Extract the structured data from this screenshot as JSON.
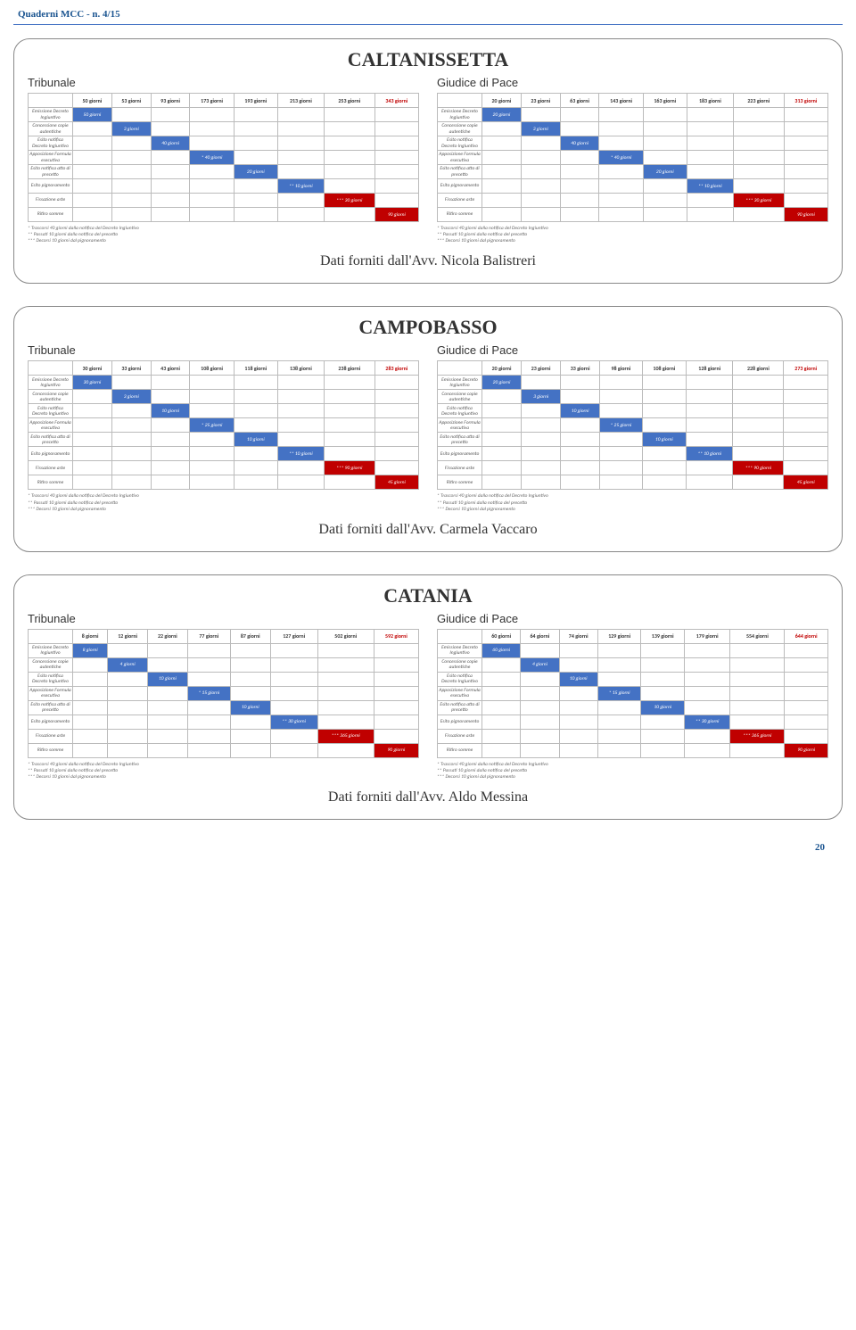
{
  "header": {
    "left": "Quaderni MCC - n. 4/15",
    "right": ""
  },
  "page_number": "20",
  "row_labels": [
    "Emissione Decreto Ingiuntivo",
    "Concessione copie autentiche",
    "Esito notifica Decreto Ingiuntivo",
    "Apposizione Formula esecutiva",
    "Esito notifica atto di precetto",
    "Esito pignoramento",
    "Fissazione aste",
    "Ritiro somme"
  ],
  "footnotes": [
    "* Trascorsi 40 giorni dalla notifica del Decreto Ingiuntivo",
    "** Passati 10 giorni dalla notifica del precetto",
    "*** Decorsi 10 giorni dal pignoramento"
  ],
  "cards": [
    {
      "city": "CALTANISSETTA",
      "provider": "Dati forniti dall'Avv. Nicola Balistreri",
      "left": {
        "title": "Tribunale",
        "headers": [
          "50 giorni",
          "53 giorni",
          "93 giorni",
          "173 giorni",
          "193 giorni",
          "213 giorni",
          "253 giorni"
        ],
        "total": "343 giorni",
        "bars": [
          {
            "col": 0,
            "span": 1,
            "color": "blue",
            "text": "50 giorni"
          },
          {
            "col": 1,
            "span": 1,
            "color": "blue",
            "text": "3 giorni"
          },
          {
            "col": 2,
            "span": 1,
            "color": "blue",
            "text": "40 giorni"
          },
          {
            "col": 3,
            "span": 1,
            "color": "blue",
            "text": "* 40 giorni"
          },
          {
            "col": 4,
            "span": 1,
            "color": "blue",
            "text": "20 giorni"
          },
          {
            "col": 5,
            "span": 1,
            "color": "blue",
            "text": "** 10 giorni"
          },
          {
            "col": 6,
            "span": 1,
            "color": "red",
            "text": "*** 30 giorni"
          },
          {
            "col": 7,
            "span": 1,
            "color": "red",
            "text": "90 giorni"
          }
        ]
      },
      "right": {
        "title": "Giudice di Pace",
        "headers": [
          "20 giorni",
          "23 giorni",
          "63 giorni",
          "143 giorni",
          "163 giorni",
          "183 giorni",
          "223 giorni"
        ],
        "total": "313 giorni",
        "bars": [
          {
            "col": 0,
            "span": 1,
            "color": "blue",
            "text": "20 giorni"
          },
          {
            "col": 1,
            "span": 1,
            "color": "blue",
            "text": "3 giorni"
          },
          {
            "col": 2,
            "span": 1,
            "color": "blue",
            "text": "40 giorni"
          },
          {
            "col": 3,
            "span": 1,
            "color": "blue",
            "text": "* 40 giorni"
          },
          {
            "col": 4,
            "span": 1,
            "color": "blue",
            "text": "20 giorni"
          },
          {
            "col": 5,
            "span": 1,
            "color": "blue",
            "text": "** 10 giorni"
          },
          {
            "col": 6,
            "span": 1,
            "color": "red",
            "text": "*** 30 giorni"
          },
          {
            "col": 7,
            "span": 1,
            "color": "red",
            "text": "90 giorni"
          }
        ]
      }
    },
    {
      "city": "CAMPOBASSO",
      "provider": "Dati forniti dall'Avv. Carmela Vaccaro",
      "left": {
        "title": "Tribunale",
        "headers": [
          "30 giorni",
          "33 giorni",
          "43 giorni",
          "108 giorni",
          "118 giorni",
          "138 giorni",
          "238 giorni"
        ],
        "total": "283 giorni",
        "bars": [
          {
            "col": 0,
            "span": 1,
            "color": "blue",
            "text": "30 giorni"
          },
          {
            "col": 1,
            "span": 1,
            "color": "blue",
            "text": "3 giorni"
          },
          {
            "col": 2,
            "span": 1,
            "color": "blue",
            "text": "10 giorni"
          },
          {
            "col": 3,
            "span": 1,
            "color": "blue",
            "text": "* 25 giorni"
          },
          {
            "col": 4,
            "span": 1,
            "color": "blue",
            "text": "10 giorni"
          },
          {
            "col": 5,
            "span": 1,
            "color": "blue",
            "text": "** 10 giorni"
          },
          {
            "col": 6,
            "span": 1,
            "color": "red",
            "text": "*** 90 giorni"
          },
          {
            "col": 7,
            "span": 1,
            "color": "red",
            "text": "45 giorni"
          }
        ]
      },
      "right": {
        "title": "Giudice di Pace",
        "headers": [
          "20 giorni",
          "23 giorni",
          "33 giorni",
          "98 giorni",
          "108 giorni",
          "128 giorni",
          "228 giorni"
        ],
        "total": "273 giorni",
        "bars": [
          {
            "col": 0,
            "span": 1,
            "color": "blue",
            "text": "20 giorni"
          },
          {
            "col": 1,
            "span": 1,
            "color": "blue",
            "text": "3 giorni"
          },
          {
            "col": 2,
            "span": 1,
            "color": "blue",
            "text": "10 giorni"
          },
          {
            "col": 3,
            "span": 1,
            "color": "blue",
            "text": "* 25 giorni"
          },
          {
            "col": 4,
            "span": 1,
            "color": "blue",
            "text": "10 giorni"
          },
          {
            "col": 5,
            "span": 1,
            "color": "blue",
            "text": "** 10 giorni"
          },
          {
            "col": 6,
            "span": 1,
            "color": "red",
            "text": "*** 90 giorni"
          },
          {
            "col": 7,
            "span": 1,
            "color": "red",
            "text": "45 giorni"
          }
        ]
      }
    },
    {
      "city": "CATANIA",
      "provider": "Dati forniti dall'Avv. Aldo Messina",
      "left": {
        "title": "Tribunale",
        "headers": [
          "8 giorni",
          "12 giorni",
          "22 giorni",
          "77 giorni",
          "87 giorni",
          "127 giorni",
          "502 giorni"
        ],
        "total": "592 giorni",
        "bars": [
          {
            "col": 0,
            "span": 1,
            "color": "blue",
            "text": "8 giorni"
          },
          {
            "col": 1,
            "span": 1,
            "color": "blue",
            "text": "4 giorni"
          },
          {
            "col": 2,
            "span": 1,
            "color": "blue",
            "text": "10 giorni"
          },
          {
            "col": 3,
            "span": 1,
            "color": "blue",
            "text": "* 15 giorni"
          },
          {
            "col": 4,
            "span": 1,
            "color": "blue",
            "text": "10 giorni"
          },
          {
            "col": 5,
            "span": 1,
            "color": "blue",
            "text": "** 30 giorni"
          },
          {
            "col": 6,
            "span": 1,
            "color": "red",
            "text": "*** 365 giorni"
          },
          {
            "col": 7,
            "span": 1,
            "color": "red",
            "text": "90 giorni"
          }
        ]
      },
      "right": {
        "title": "Giudice di Pace",
        "headers": [
          "60 giorni",
          "64 giorni",
          "74 giorni",
          "129 giorni",
          "139 giorni",
          "179 giorni",
          "554 giorni"
        ],
        "total": "644 giorni",
        "bars": [
          {
            "col": 0,
            "span": 1,
            "color": "blue",
            "text": "60 giorni"
          },
          {
            "col": 1,
            "span": 1,
            "color": "blue",
            "text": "4 giorni"
          },
          {
            "col": 2,
            "span": 1,
            "color": "blue",
            "text": "10 giorni"
          },
          {
            "col": 3,
            "span": 1,
            "color": "blue",
            "text": "* 15 giorni"
          },
          {
            "col": 4,
            "span": 1,
            "color": "blue",
            "text": "10 giorni"
          },
          {
            "col": 5,
            "span": 1,
            "color": "blue",
            "text": "** 30 giorni"
          },
          {
            "col": 6,
            "span": 1,
            "color": "red",
            "text": "*** 365 giorni"
          },
          {
            "col": 7,
            "span": 1,
            "color": "red",
            "text": "90 giorni"
          }
        ]
      }
    }
  ]
}
